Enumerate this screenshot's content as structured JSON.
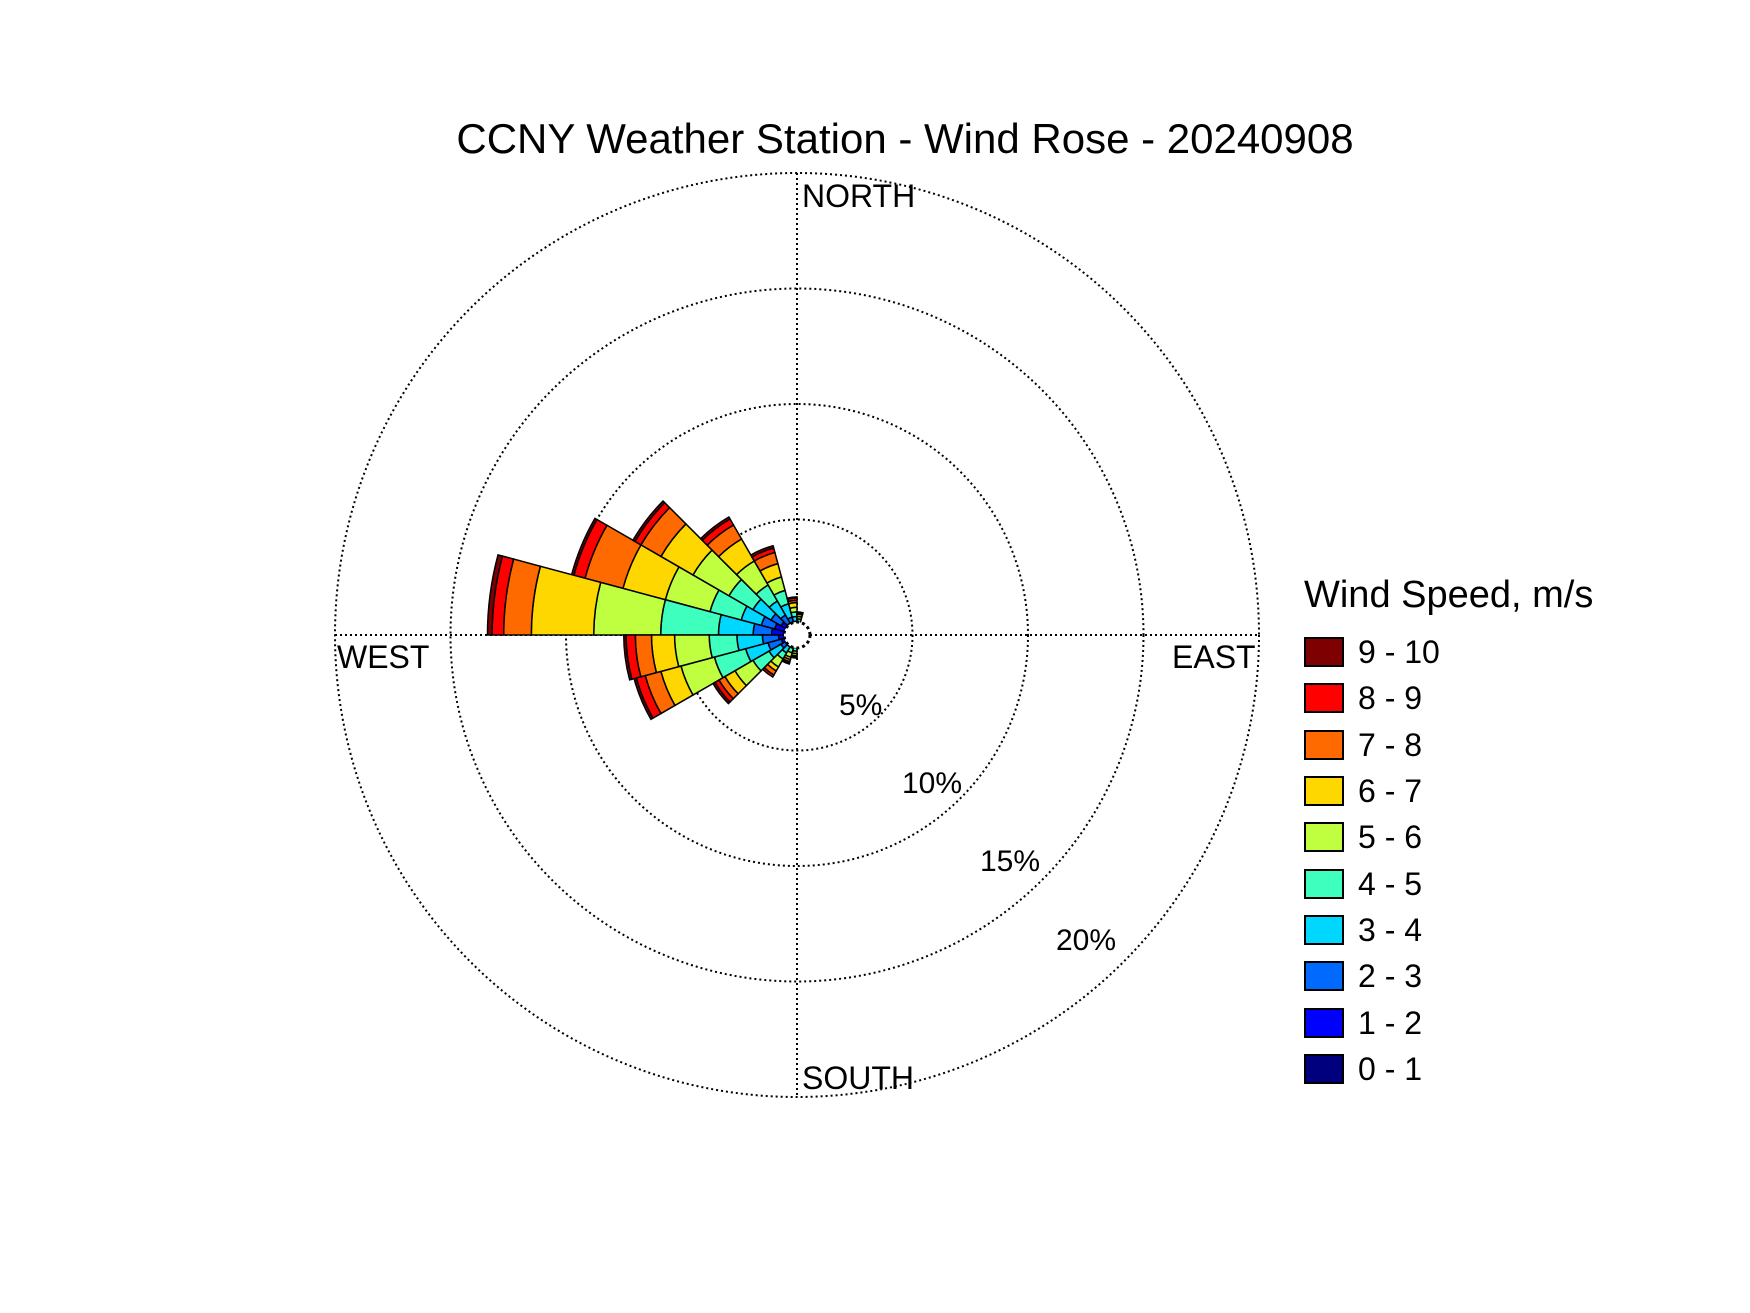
{
  "chart_data": {
    "type": "windrose",
    "title": "CCNY Weather Station - Wind Rose - 20240908",
    "directions": [
      "NORTH",
      "EAST",
      "SOUTH",
      "WEST"
    ],
    "ring_labels": [
      "5%",
      "10%",
      "15%",
      "20%"
    ],
    "rings": [
      5,
      10,
      15,
      20
    ],
    "max_radius": 20,
    "legend": {
      "title": "Wind Speed, m/s",
      "placement": "right",
      "bins": [
        {
          "label": "9 - 10",
          "color": "#7f0000"
        },
        {
          "label": "8 - 9",
          "color": "#ff0000"
        },
        {
          "label": "7 - 8",
          "color": "#ff6a00"
        },
        {
          "label": "6 - 7",
          "color": "#ffd700"
        },
        {
          "label": "5 - 6",
          "color": "#bfff3f"
        },
        {
          "label": "4 - 5",
          "color": "#3fffbf"
        },
        {
          "label": "3 - 4",
          "color": "#00d7ff"
        },
        {
          "label": "2 - 3",
          "color": "#006aff"
        },
        {
          "label": "1 - 2",
          "color": "#0000ff"
        },
        {
          "label": "0 - 1",
          "color": "#00007f"
        }
      ]
    },
    "speed_bins_low_to_high": [
      "0 - 1",
      "1 - 2",
      "2 - 3",
      "3 - 4",
      "4 - 5",
      "5 - 6",
      "6 - 7",
      "7 - 8",
      "8 - 9",
      "9 - 10"
    ],
    "sectors": [
      {
        "direction_deg": 292.5,
        "cumulative_percent": [
          0.5,
          1.0,
          1.6,
          2.5,
          3.9,
          5.9,
          7.8,
          9.5,
          10.0,
          10.1
        ]
      },
      {
        "direction_deg": 307.5,
        "cumulative_percent": [
          0.4,
          0.8,
          1.3,
          2.2,
          3.4,
          5.2,
          6.8,
          7.8,
          8.1,
          8.2
        ]
      },
      {
        "direction_deg": 322.5,
        "cumulative_percent": [
          0.3,
          0.6,
          1.0,
          1.7,
          2.5,
          3.7,
          4.8,
          5.5,
          5.8,
          5.9
        ]
      },
      {
        "direction_deg": 337.5,
        "cumulative_percent": [
          0.3,
          0.5,
          0.8,
          1.4,
          2.0,
          2.6,
          3.2,
          3.7,
          3.9,
          4.0
        ]
      },
      {
        "direction_deg": 277.5,
        "cumulative_percent": [
          0.5,
          1.1,
          1.9,
          3.4,
          5.9,
          8.8,
          11.5,
          12.7,
          13.2,
          13.4
        ]
      },
      {
        "direction_deg": 262.5,
        "cumulative_percent": [
          0.4,
          0.8,
          1.5,
          2.6,
          3.8,
          5.3,
          6.3,
          7.0,
          7.4,
          7.5
        ]
      },
      {
        "direction_deg": 247.5,
        "cumulative_percent": [
          0.3,
          0.7,
          1.3,
          2.3,
          3.7,
          5.2,
          6.1,
          6.8,
          7.2,
          7.3
        ]
      },
      {
        "direction_deg": 232.5,
        "cumulative_percent": [
          0.2,
          0.5,
          0.8,
          1.4,
          2.2,
          3.1,
          3.6,
          3.9,
          4.1,
          4.2
        ]
      },
      {
        "direction_deg": 217.5,
        "cumulative_percent": [
          0.2,
          0.4,
          0.6,
          0.9,
          1.2,
          1.6,
          1.8,
          2.0,
          2.1,
          2.1
        ]
      },
      {
        "direction_deg": 202.5,
        "cumulative_percent": [
          0.15,
          0.3,
          0.45,
          0.6,
          0.8,
          1.0,
          1.1,
          1.2,
          1.25,
          1.3
        ]
      },
      {
        "direction_deg": 352.5,
        "cumulative_percent": [
          0.2,
          0.4,
          0.6,
          0.8,
          1.0,
          1.2,
          1.4,
          1.5,
          1.6,
          1.65
        ]
      },
      {
        "direction_deg": 7.5,
        "cumulative_percent": [
          0.15,
          0.3,
          0.4,
          0.55,
          0.7,
          0.8,
          0.9,
          0.95,
          1.0,
          1.0
        ]
      },
      {
        "direction_deg": 187.5,
        "cumulative_percent": [
          0.15,
          0.3,
          0.45,
          0.55,
          0.7,
          0.8,
          0.9,
          0.95,
          1.0,
          1.0
        ]
      }
    ]
  }
}
